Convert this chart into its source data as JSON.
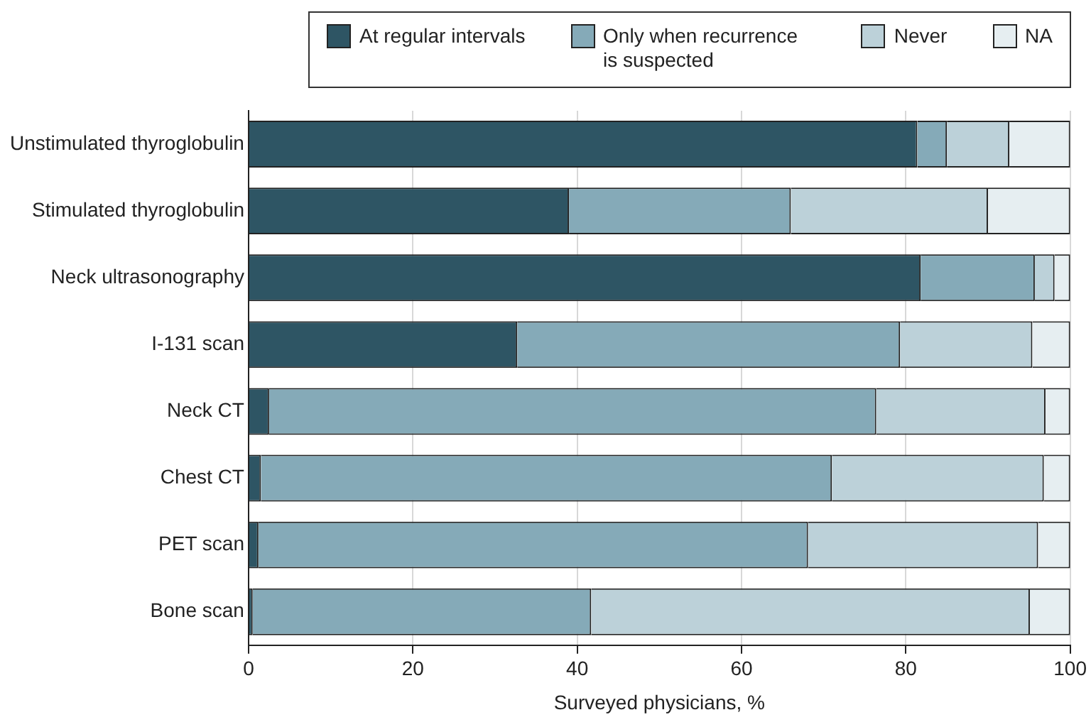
{
  "chart_data": {
    "type": "bar",
    "orientation": "horizontal",
    "stacked": true,
    "categories": [
      "Unstimulated thyroglobulin",
      "Stimulated thyroglobulin",
      "Neck ultrasonography",
      "I-131 scan",
      "Neck CT",
      "Chest CT",
      "PET scan",
      "Bone scan"
    ],
    "series": [
      {
        "name": "At regular intervals",
        "color": "#2e5564",
        "values": [
          81.4,
          39.0,
          81.8,
          32.7,
          2.5,
          1.5,
          1.2,
          0.5
        ]
      },
      {
        "name": "Only when recurrence is suspected",
        "color": "#85aab8",
        "values": [
          3.6,
          27.0,
          13.9,
          46.6,
          73.9,
          69.5,
          66.9,
          41.2
        ]
      },
      {
        "name": "Never",
        "color": "#bcd1d9",
        "values": [
          7.6,
          24.0,
          2.4,
          16.1,
          20.6,
          25.8,
          28.0,
          53.4
        ]
      },
      {
        "name": "NA",
        "color": "#e6eef1",
        "values": [
          7.4,
          10.0,
          1.9,
          4.6,
          3.0,
          3.2,
          3.9,
          4.9
        ]
      }
    ],
    "xlabel": "Surveyed physicians, %",
    "xlim": [
      0,
      100
    ],
    "xticks": [
      0,
      20,
      40,
      60,
      80,
      100
    ],
    "grid": "x",
    "legend": "top"
  }
}
